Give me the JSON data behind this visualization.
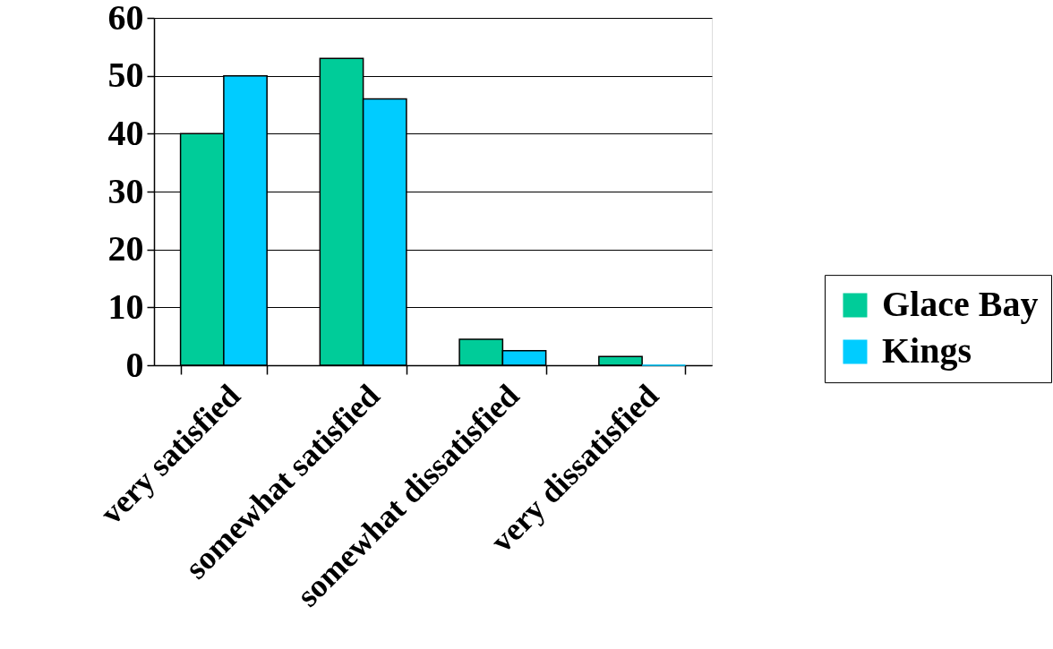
{
  "chart_data": {
    "type": "bar",
    "categories": [
      "very satisfied",
      "somewhat satisfied",
      "somewhat dissatisfied",
      "very dissatisfied"
    ],
    "series": [
      {
        "name": "Glace Bay",
        "color": "#00cc99",
        "values": [
          40,
          53,
          4.5,
          1.5
        ]
      },
      {
        "name": "Kings",
        "color": "#00ccff",
        "values": [
          50,
          46,
          2.5,
          0
        ]
      }
    ],
    "ylim": [
      0,
      60
    ],
    "yticks": [
      0,
      10,
      20,
      30,
      40,
      50,
      60
    ],
    "grid": "y",
    "legend": "right"
  }
}
